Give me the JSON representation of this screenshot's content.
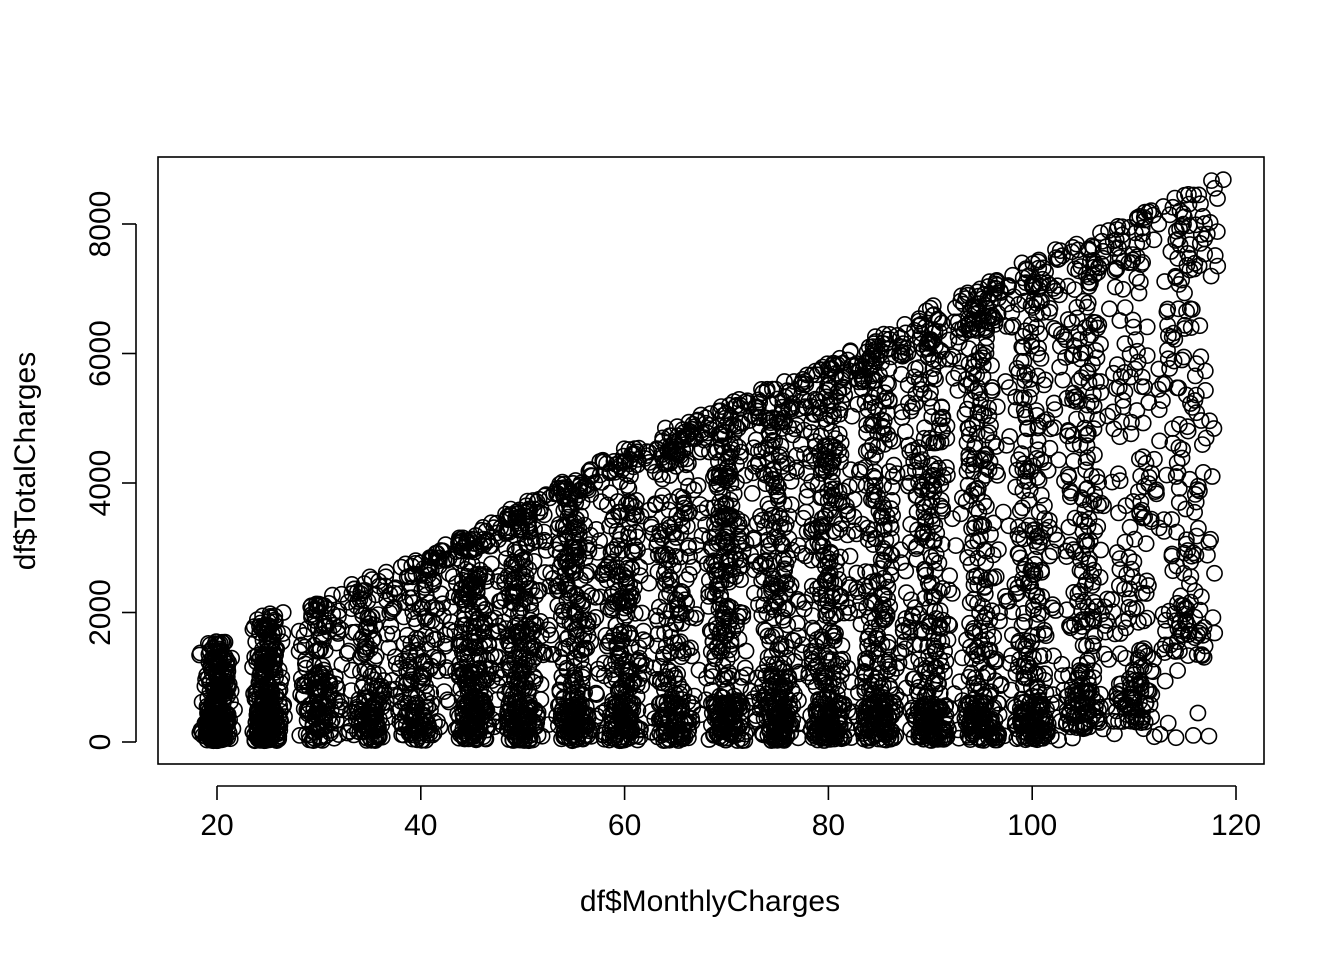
{
  "chart_data": {
    "type": "scatter",
    "title": "",
    "xlabel": "df$MonthlyCharges",
    "ylabel": "df$TotalCharges",
    "xlim": [
      18.25,
      118.75
    ],
    "ylim": [
      18.8,
      8684.8
    ],
    "xticks": [
      20,
      40,
      60,
      80,
      100,
      120
    ],
    "yticks": [
      0,
      2000,
      4000,
      6000,
      8000
    ],
    "x_tick_labels": [
      "20",
      "40",
      "60",
      "80",
      "100",
      "120"
    ],
    "y_tick_labels": [
      "0",
      "2000",
      "4000",
      "6000",
      "8000"
    ],
    "grid": false,
    "legend": "none",
    "marker": "open-circle",
    "point_color": "#000000",
    "series": [
      {
        "values_note_free": true,
        "clusters": [
          {
            "x_center": 20,
            "x_spread": 1.0,
            "y_min": 20,
            "y_max": 1550,
            "density": 1.0
          },
          {
            "x_center": 25,
            "x_spread": 1.0,
            "y_min": 20,
            "y_max": 1950,
            "density": 1.0
          },
          {
            "x_center": 30,
            "x_spread": 1.2,
            "y_min": 20,
            "y_max": 2150,
            "density": 0.35
          },
          {
            "x_center": 35,
            "x_spread": 1.4,
            "y_min": 20,
            "y_max": 2500,
            "density": 0.45
          },
          {
            "x_center": 40,
            "x_spread": 1.5,
            "y_min": 20,
            "y_max": 2800,
            "density": 0.45
          },
          {
            "x_center": 45,
            "x_spread": 1.4,
            "y_min": 20,
            "y_max": 3200,
            "density": 0.8
          },
          {
            "x_center": 50,
            "x_spread": 1.4,
            "y_min": 20,
            "y_max": 3600,
            "density": 0.8
          },
          {
            "x_center": 55,
            "x_spread": 1.4,
            "y_min": 20,
            "y_max": 4000,
            "density": 0.8
          },
          {
            "x_center": 60,
            "x_spread": 1.5,
            "y_min": 20,
            "y_max": 4500,
            "density": 0.75
          },
          {
            "x_center": 65,
            "x_spread": 1.6,
            "y_min": 20,
            "y_max": 4900,
            "density": 0.7
          },
          {
            "x_center": 70,
            "x_spread": 1.4,
            "y_min": 20,
            "y_max": 5200,
            "density": 0.9
          },
          {
            "x_center": 75,
            "x_spread": 1.4,
            "y_min": 20,
            "y_max": 5500,
            "density": 0.95
          },
          {
            "x_center": 80,
            "x_spread": 1.4,
            "y_min": 20,
            "y_max": 5900,
            "density": 1.0
          },
          {
            "x_center": 85,
            "x_spread": 1.5,
            "y_min": 20,
            "y_max": 6300,
            "density": 0.95
          },
          {
            "x_center": 90,
            "x_spread": 1.5,
            "y_min": 20,
            "y_max": 6700,
            "density": 0.95
          },
          {
            "x_center": 95,
            "x_spread": 1.5,
            "y_min": 20,
            "y_max": 7000,
            "density": 0.9
          },
          {
            "x_center": 100,
            "x_spread": 1.5,
            "y_min": 20,
            "y_max": 7400,
            "density": 0.9
          },
          {
            "x_center": 105,
            "x_spread": 1.6,
            "y_min": 200,
            "y_max": 7800,
            "density": 0.75
          },
          {
            "x_center": 110,
            "x_spread": 1.6,
            "y_min": 300,
            "y_max": 8200,
            "density": 0.5
          },
          {
            "x_center": 115,
            "x_spread": 1.8,
            "y_min": 1300,
            "y_max": 8600,
            "density": 0.35
          }
        ],
        "upper_envelope": [
          [
            18.25,
            1560
          ],
          [
            25,
            1990
          ],
          [
            40,
            2850
          ],
          [
            60,
            4550
          ],
          [
            70,
            5250
          ],
          [
            80,
            5850
          ],
          [
            90,
            6750
          ],
          [
            100,
            7450
          ],
          [
            110,
            8150
          ],
          [
            118.75,
            8684.8
          ]
        ],
        "sample_points": [
          [
            118.75,
            8684.8
          ],
          [
            117.6,
            8670
          ],
          [
            116.5,
            7700
          ],
          [
            118.2,
            7350
          ],
          [
            117.0,
            5430
          ],
          [
            116.2,
            3900
          ],
          [
            116.3,
            3950
          ],
          [
            113.0,
            1380
          ],
          [
            113.1,
            1880
          ],
          [
            110.0,
            650
          ],
          [
            111.0,
            1160
          ],
          [
            108.0,
            320
          ],
          [
            107.8,
            2200
          ],
          [
            110.8,
            2300
          ],
          [
            109.5,
            2850
          ],
          [
            109.2,
            3650
          ],
          [
            112.5,
            4650
          ],
          [
            114.7,
            5900
          ],
          [
            115.6,
            6400
          ],
          [
            114.4,
            4550
          ],
          [
            30.0,
            2130
          ],
          [
            29.8,
            2050
          ],
          [
            33.7,
            2100
          ],
          [
            35.0,
            2550
          ],
          [
            38.5,
            2750
          ],
          [
            39.5,
            2800
          ],
          [
            42.2,
            2950
          ],
          [
            44.0,
            3100
          ],
          [
            48.2,
            3300
          ],
          [
            50.5,
            3550
          ],
          [
            54.0,
            3800
          ],
          [
            56.5,
            4180
          ],
          [
            61.0,
            4530
          ],
          [
            64.0,
            4850
          ],
          [
            67.5,
            5050
          ],
          [
            71.0,
            5200
          ],
          [
            74.5,
            5450
          ],
          [
            77.5,
            5600
          ],
          [
            80.5,
            5850
          ],
          [
            84.0,
            6100
          ],
          [
            87.5,
            6450
          ],
          [
            90.0,
            6700
          ],
          [
            93.5,
            6850
          ],
          [
            96.5,
            7000
          ],
          [
            99.0,
            7400
          ],
          [
            102.5,
            7450
          ],
          [
            104.5,
            7600
          ],
          [
            107.5,
            7900
          ],
          [
            111.0,
            8100
          ],
          [
            114.0,
            8400
          ],
          [
            19.4,
            30
          ],
          [
            20.5,
            1540
          ],
          [
            25.2,
            1980
          ],
          [
            26.5,
            2000
          ],
          [
            20.0,
            20
          ]
        ]
      }
    ]
  }
}
